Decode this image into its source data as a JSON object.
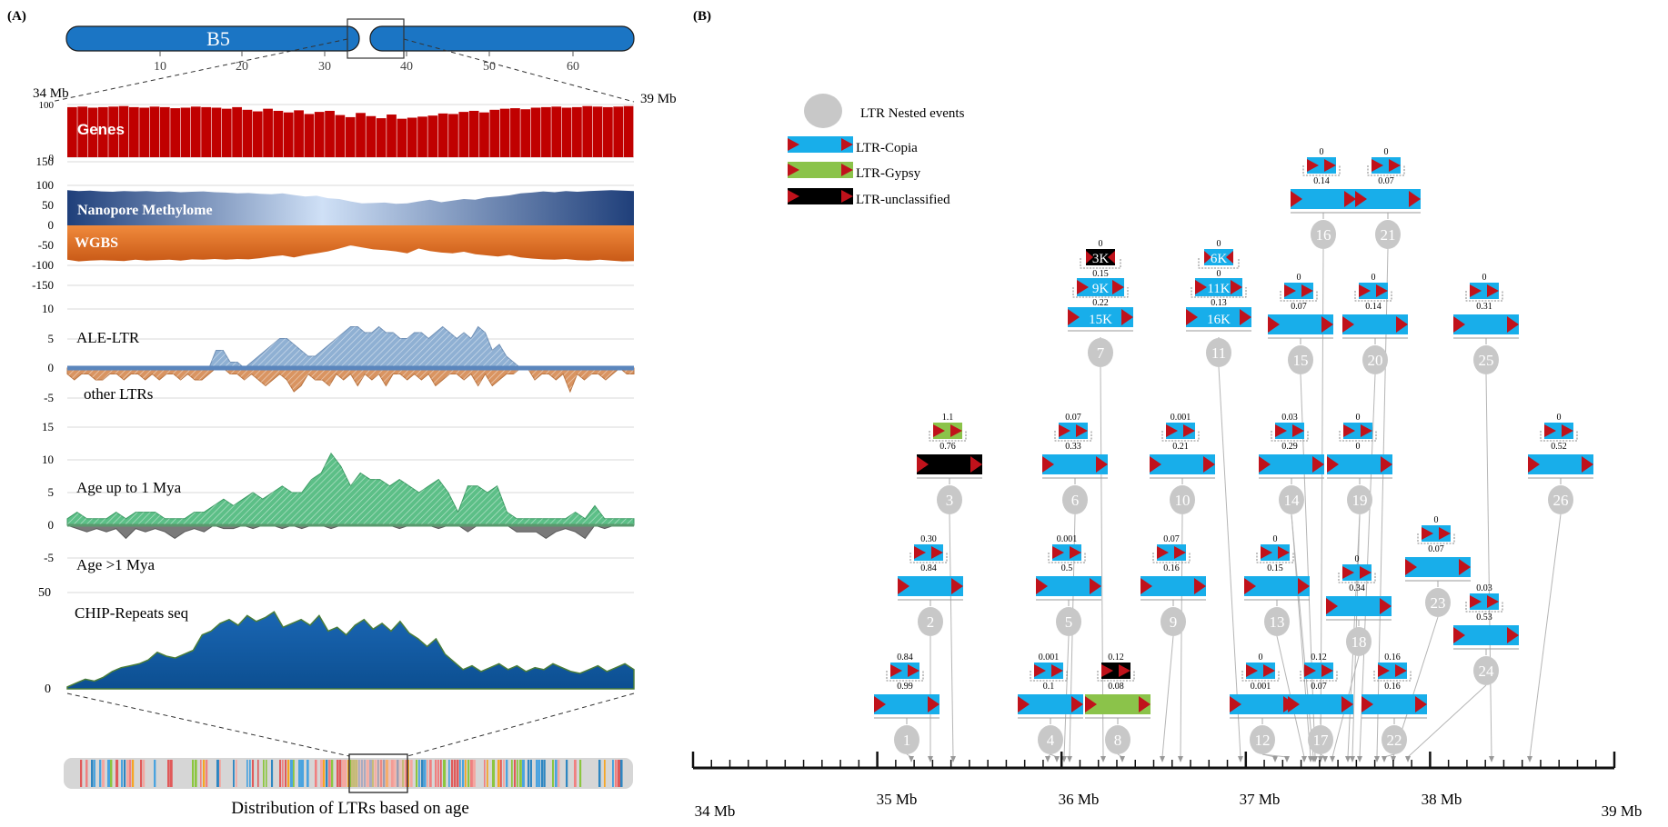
{
  "panel_a": {
    "label": "(A)",
    "chromosome": {
      "name": "B5",
      "ticks": [
        "10",
        "20",
        "30",
        "40",
        "50",
        "60"
      ],
      "region_start": "34 Mb",
      "region_end": "39 Mb"
    },
    "bottom_caption": "Distribution of LTRs based on age"
  },
  "panel_b": {
    "label": "(B)",
    "legend": {
      "nested": "LTR Nested events",
      "copia": "LTR-Copia",
      "gypsy": "LTR-Gypsy",
      "unclassified": "LTR-unclassified"
    },
    "axis_ticks": [
      "34 Mb",
      "35 Mb",
      "36 Mb",
      "37 Mb",
      "38 Mb",
      "39 Mb"
    ]
  },
  "colors": {
    "chromosome": "#1b75c4",
    "genes": "#c00000",
    "methylome": "#2a4d8a",
    "wgbs": "#e0793a",
    "ale_ltr": "#8fb0d3",
    "other_ltr": "#d99461",
    "young": "#5cbf87",
    "old": "#7a7a7a",
    "chip": "#1a5ea3",
    "copia": "#18aeea",
    "gypsy": "#8bc34a",
    "unclassified": "#000000",
    "ltr_arrow": "#c0121b",
    "event_circle": "#c8c8c8"
  },
  "chart_data": [
    {
      "type": "bar",
      "series_label": "Genes",
      "ylim": [
        0,
        100
      ],
      "ticks": [
        "100",
        "0"
      ],
      "values": [
        95,
        96,
        94,
        95,
        96,
        97,
        95,
        94,
        96,
        95,
        93,
        94,
        96,
        95,
        94,
        92,
        95,
        90,
        87,
        92,
        88,
        85,
        89,
        82,
        86,
        88,
        80,
        76,
        84,
        78,
        74,
        81,
        73,
        75,
        77,
        79,
        83,
        82,
        86,
        88,
        85,
        90,
        92,
        93,
        91,
        94,
        95,
        96,
        94,
        95,
        97,
        96,
        95,
        96,
        97
      ]
    },
    {
      "type": "area",
      "ylim": [
        -150,
        150
      ],
      "ticks": [
        "150",
        "100",
        "50",
        "0",
        "-50",
        "-100",
        "-150"
      ],
      "series": [
        {
          "name": "Nanopore Methylome",
          "values": [
            88,
            86,
            87,
            85,
            84,
            86,
            85,
            86,
            84,
            85,
            83,
            84,
            85,
            83,
            82,
            80,
            81,
            79,
            78,
            80,
            76,
            72,
            74,
            68,
            66,
            60,
            55,
            56,
            57,
            54,
            55,
            60,
            64,
            58,
            62,
            66,
            64,
            70,
            72,
            75,
            80,
            82,
            85,
            83,
            86,
            84,
            86,
            87,
            88,
            87,
            86
          ]
        },
        {
          "name": "WGBS",
          "values": [
            -86,
            -90,
            -88,
            -87,
            -88,
            -89,
            -86,
            -88,
            -87,
            -86,
            -88,
            -85,
            -86,
            -84,
            -86,
            -84,
            -85,
            -82,
            -78,
            -75,
            -80,
            -74,
            -70,
            -65,
            -58,
            -50,
            -55,
            -60,
            -62,
            -65,
            -70,
            -58,
            -64,
            -68,
            -70,
            -66,
            -72,
            -75,
            -78,
            -74,
            -80,
            -83,
            -85,
            -86,
            -84,
            -87,
            -88,
            -86,
            -88,
            -90,
            -89
          ]
        }
      ]
    },
    {
      "type": "area",
      "ylim": [
        -5,
        10
      ],
      "ticks": [
        "10",
        "5",
        "0",
        "-5"
      ],
      "series": [
        {
          "name": "ALE-LTR",
          "values": [
            0,
            0,
            0,
            0,
            0,
            0,
            0,
            0,
            0,
            0,
            0,
            0,
            0,
            0,
            0,
            0,
            0,
            0,
            0,
            0,
            0,
            3,
            3,
            1,
            1,
            0,
            1,
            2,
            3,
            4,
            5,
            5,
            4,
            3,
            2,
            2,
            3,
            4,
            5,
            6,
            7,
            7,
            6,
            6,
            7,
            6,
            6,
            5,
            5,
            6,
            6,
            5,
            6,
            7,
            6,
            5,
            6,
            5,
            7,
            6,
            3,
            4,
            2,
            1,
            0,
            0,
            0,
            0,
            0,
            0,
            0,
            0,
            0,
            0,
            0,
            0,
            0,
            0,
            0,
            0,
            0
          ]
        },
        {
          "name": "other LTRs",
          "values": [
            -1,
            -2,
            -1,
            -1,
            -2,
            -2,
            -1,
            -1,
            -2,
            -1,
            -1,
            -2,
            -1,
            -2,
            -1,
            -1,
            -2,
            -1,
            -2,
            -2,
            -1,
            0,
            0,
            -1,
            -1,
            -2,
            -1,
            -2,
            -3,
            -2,
            -1,
            -2,
            -4,
            -3,
            -1,
            -2,
            -2,
            -3,
            -1,
            -2,
            -1,
            -3,
            -1,
            -2,
            -1,
            -3,
            -1,
            -1,
            -2,
            -1,
            -2,
            -1,
            -3,
            -2,
            -1,
            -1,
            -2,
            -1,
            -3,
            -1,
            -3,
            -2,
            -1,
            -1,
            0,
            0,
            -2,
            -1,
            -1,
            -2,
            -1,
            -4,
            -1,
            -2,
            -1,
            -1,
            -2,
            -1,
            0,
            -1,
            -1
          ]
        }
      ]
    },
    {
      "type": "area",
      "ylim": [
        -5,
        15
      ],
      "ticks": [
        "15",
        "10",
        "5",
        "0",
        "-5"
      ],
      "series": [
        {
          "name": "Age  up to 1 Mya",
          "values": [
            1,
            2,
            1,
            1,
            1,
            2,
            1,
            2,
            2,
            2,
            1,
            1,
            1,
            2,
            2,
            3,
            4,
            3,
            4,
            5,
            4,
            5,
            6,
            5,
            5,
            7,
            8,
            11,
            9,
            6,
            8,
            7,
            7,
            6,
            7,
            6,
            5,
            6,
            7,
            5,
            2,
            6,
            6,
            5,
            6,
            2,
            1,
            1,
            1,
            1,
            1,
            1,
            2,
            1,
            3,
            1,
            1,
            1,
            1
          ]
        },
        {
          "name": "Age >1 Mya",
          "values": [
            0,
            -0.5,
            -1,
            -0.5,
            -1,
            -0.5,
            -2,
            -0.5,
            -1,
            -0.5,
            -1,
            -2,
            -1,
            -0.5,
            -1,
            0,
            -0.5,
            -0.5,
            0,
            -0.5,
            0,
            0,
            -0.5,
            0,
            -0.5,
            0,
            0,
            -0.5,
            0,
            0,
            0,
            0,
            0,
            0,
            -0.5,
            0,
            0,
            0,
            -0.5,
            0,
            0,
            -1,
            0,
            0,
            0,
            0,
            -1,
            -1,
            -1,
            -2,
            -1,
            -0.5,
            -1,
            -2,
            0,
            -0.5,
            0,
            0,
            0
          ]
        }
      ]
    },
    {
      "type": "area",
      "ylim": [
        0,
        50
      ],
      "ticks": [
        "50",
        "0"
      ],
      "series": [
        {
          "name": "CHIP-Repeats seq",
          "values": [
            1,
            3,
            5,
            4,
            6,
            9,
            11,
            12,
            13,
            15,
            19,
            17,
            16,
            18,
            20,
            28,
            30,
            34,
            36,
            33,
            38,
            35,
            37,
            40,
            32,
            34,
            36,
            33,
            38,
            30,
            32,
            28,
            33,
            36,
            31,
            34,
            30,
            35,
            29,
            26,
            22,
            26,
            18,
            14,
            10,
            12,
            9,
            11,
            13,
            10,
            12,
            9,
            11,
            10,
            13,
            11,
            9,
            8,
            10,
            12,
            9,
            11,
            13,
            10
          ]
        }
      ]
    }
  ],
  "events": [
    {
      "id": "1",
      "top": "0.84",
      "bottom": "0.99",
      "outer": "copia"
    },
    {
      "id": "2",
      "top": "0.30",
      "bottom": "0.84",
      "outer": "copia"
    },
    {
      "id": "3",
      "top": "1.1",
      "bottom": "0.76",
      "outer": "unclassified",
      "inner": "gypsy"
    },
    {
      "id": "4",
      "top": "0.001",
      "bottom": "0.1",
      "outer": "copia"
    },
    {
      "id": "5",
      "top": "0.001",
      "bottom": "0.5",
      "outer": "copia"
    },
    {
      "id": "6",
      "top": "0.07",
      "bottom": "0.33",
      "outer": "copia"
    },
    {
      "id": "7",
      "top": "0",
      "l1": "0.15",
      "l2": "0.22",
      "tier1": "3K",
      "tier2": "9K",
      "tier3": "15K"
    },
    {
      "id": "8",
      "top": "0.12",
      "bottom": "0.08",
      "outer": "gypsy",
      "inner": "unclassified"
    },
    {
      "id": "9",
      "top": "0.07",
      "bottom": "0.16",
      "outer": "copia"
    },
    {
      "id": "10",
      "top": "0.001",
      "bottom": "0.21",
      "outer": "copia"
    },
    {
      "id": "11",
      "top": "0",
      "l1": "0",
      "l2": "0.13",
      "tier1": "6K",
      "tier2": "11K",
      "tier3": "16K"
    },
    {
      "id": "12",
      "top": "0",
      "bottom": "0.001",
      "outer": "copia"
    },
    {
      "id": "13",
      "top": "0",
      "bottom": "0.15",
      "outer": "copia"
    },
    {
      "id": "14",
      "top": "0.03",
      "bottom": "0.29",
      "outer": "copia"
    },
    {
      "id": "15",
      "top": "0",
      "bottom": "0.07",
      "outer": "copia"
    },
    {
      "id": "16",
      "top": "0",
      "bottom": "0.14",
      "outer": "copia"
    },
    {
      "id": "17",
      "top": "0.12",
      "bottom": "0.07",
      "outer": "copia"
    },
    {
      "id": "18",
      "top": "0",
      "bottom": "0.34",
      "outer": "copia"
    },
    {
      "id": "19",
      "top": "0",
      "bottom": "0",
      "outer": "copia"
    },
    {
      "id": "20",
      "top": "0",
      "bottom": "0.14",
      "outer": "copia"
    },
    {
      "id": "21",
      "top": "0",
      "bottom": "0.07",
      "outer": "copia"
    },
    {
      "id": "22",
      "top": "0.16",
      "bottom": "0.16",
      "outer": "copia"
    },
    {
      "id": "23",
      "top": "0",
      "bottom": "0.07",
      "outer": "copia"
    },
    {
      "id": "24",
      "top": "0.03",
      "bottom": "0.53",
      "outer": "copia"
    },
    {
      "id": "25",
      "top": "0",
      "bottom": "0.31",
      "outer": "copia"
    },
    {
      "id": "26",
      "top": "0",
      "bottom": "0.52",
      "outer": "copia"
    }
  ]
}
